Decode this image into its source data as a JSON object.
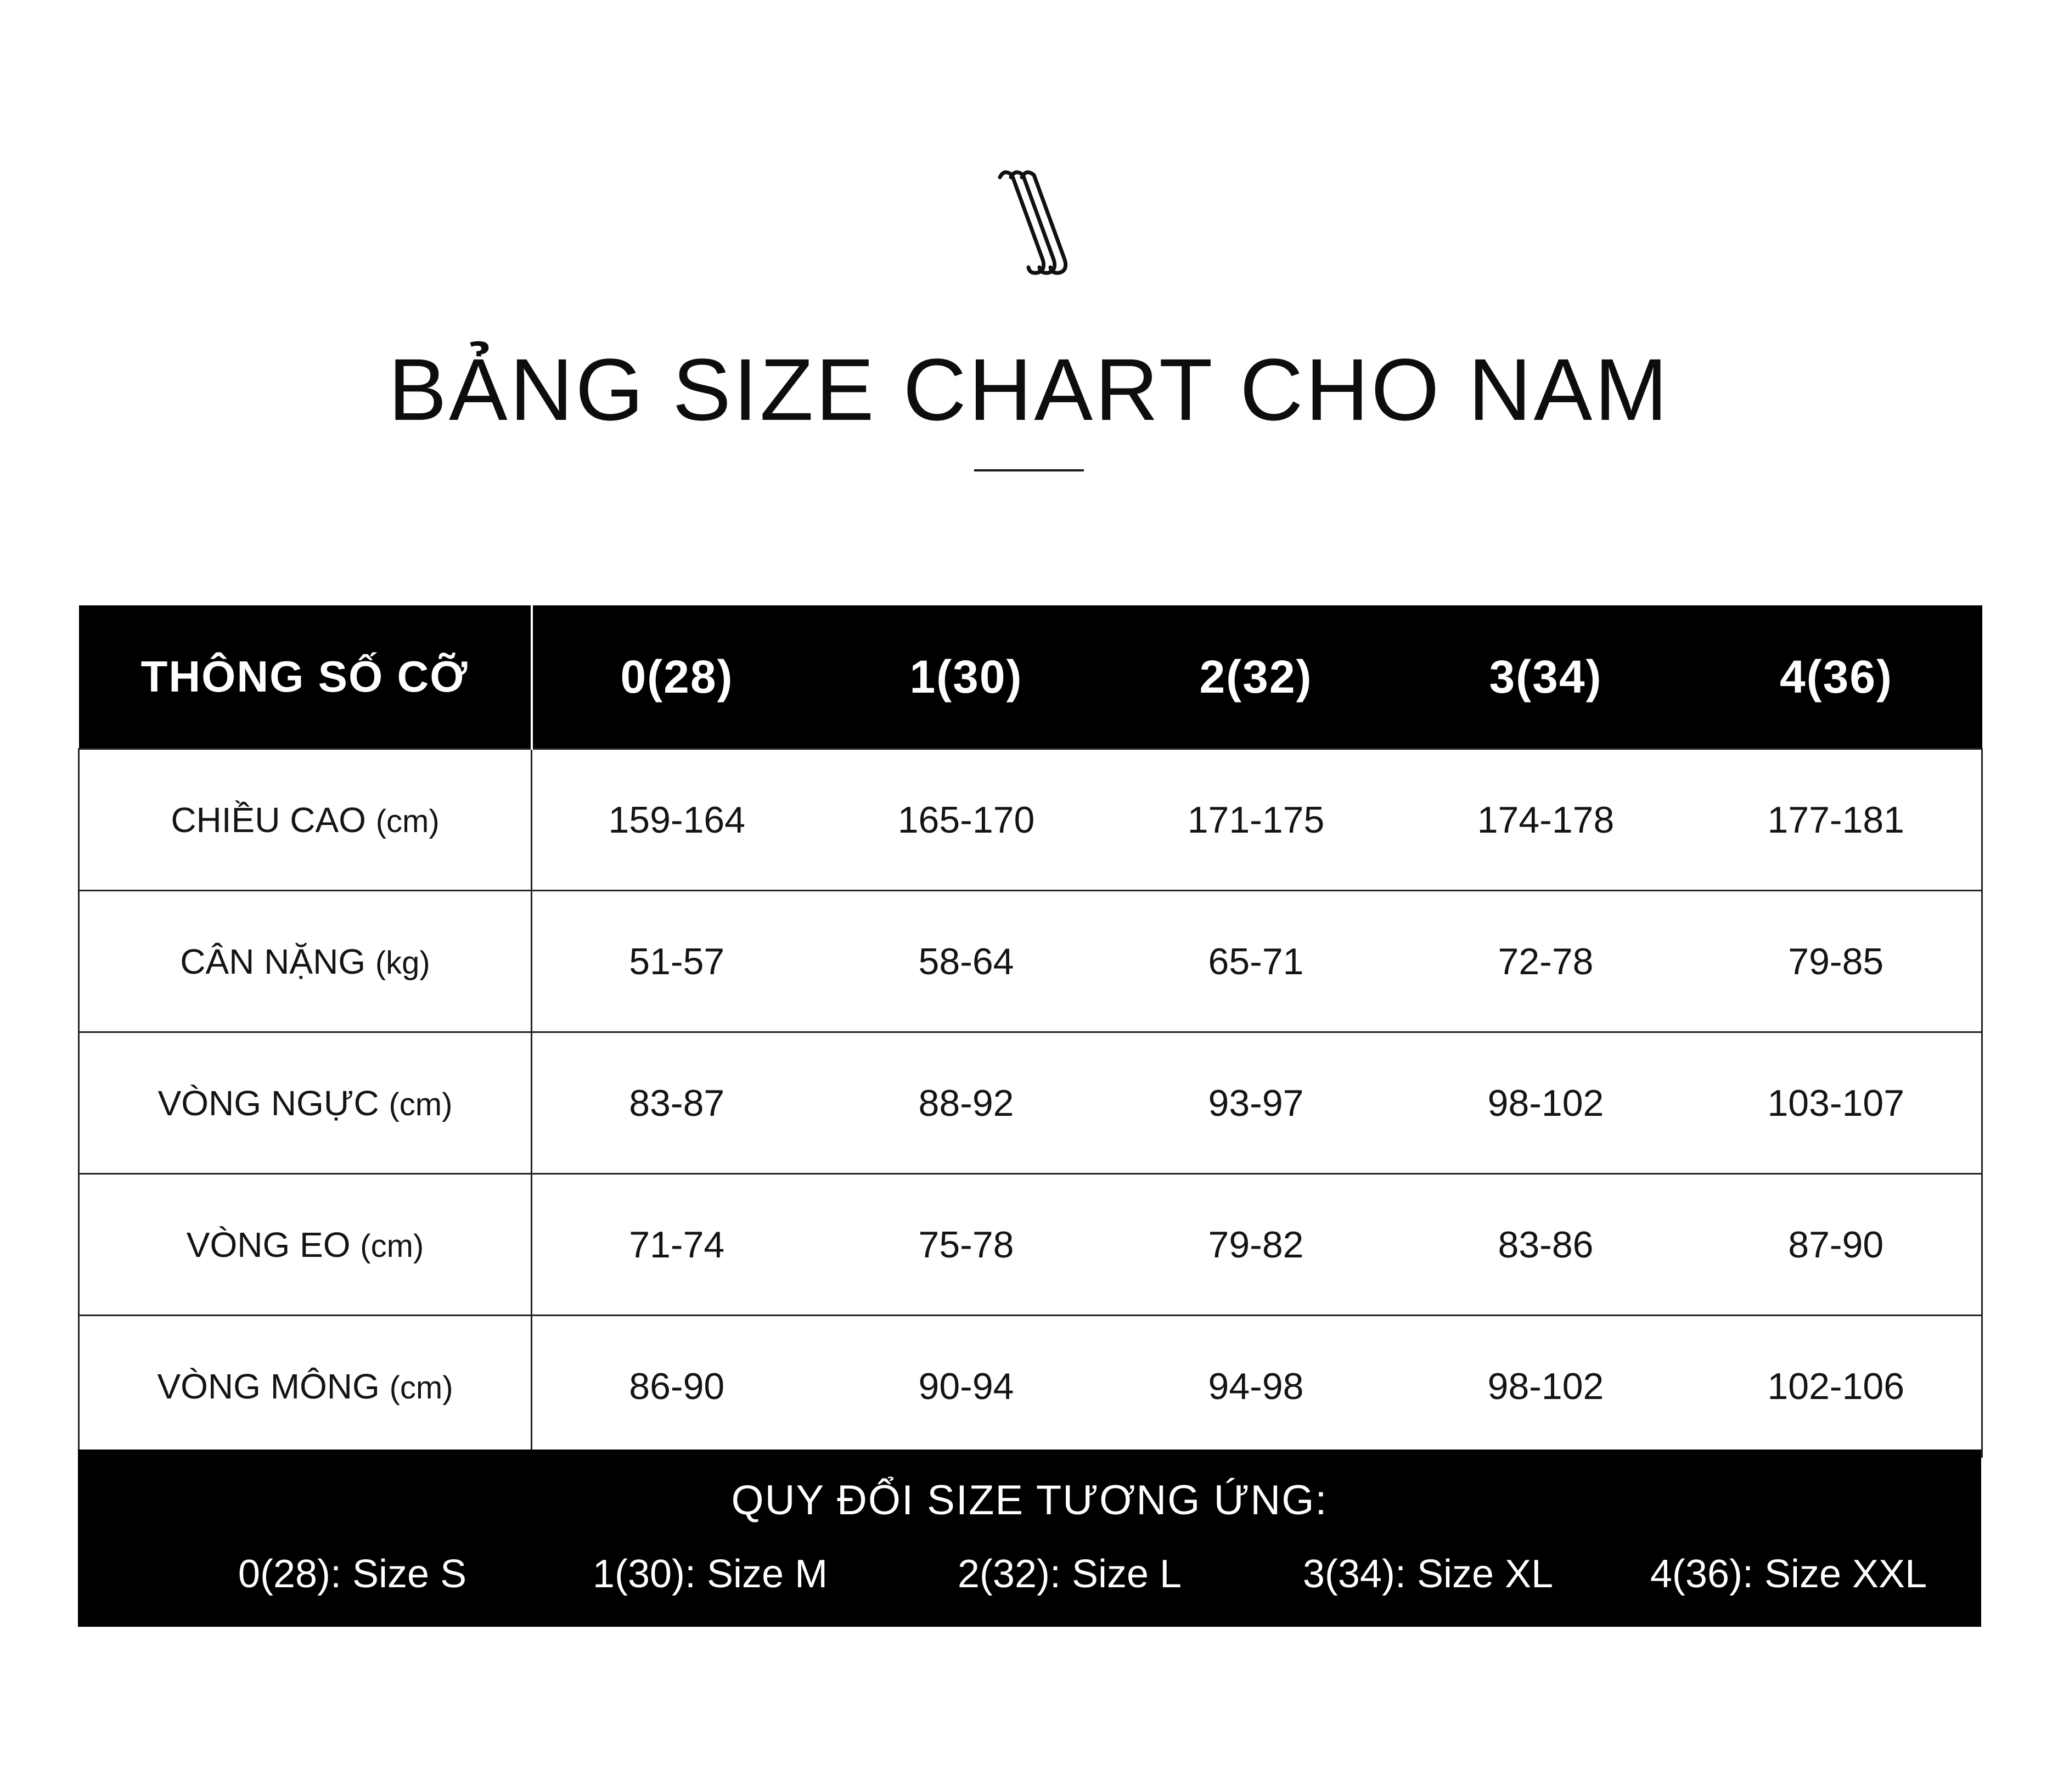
{
  "title": "BẢNG SIZE CHART CHO NAM",
  "logo_icon": "triple-s-hook-logo",
  "table": {
    "header_label": "THÔNG SỐ CỠ",
    "sizes": [
      "0(28)",
      "1(30)",
      "2(32)",
      "3(34)",
      "4(36)"
    ],
    "rows": [
      {
        "label": "CHIỀU CAO",
        "unit": "(cm)",
        "values": [
          "159-164",
          "165-170",
          "171-175",
          "174-178",
          "177-181"
        ]
      },
      {
        "label": "CÂN NẶNG",
        "unit": "(kg)",
        "values": [
          "51-57",
          "58-64",
          "65-71",
          "72-78",
          "79-85"
        ]
      },
      {
        "label": "VÒNG NGỰC",
        "unit": "(cm)",
        "values": [
          "83-87",
          "88-92",
          "93-97",
          "98-102",
          "103-107"
        ]
      },
      {
        "label": "VÒNG EO",
        "unit": "(cm)",
        "values": [
          "71-74",
          "75-78",
          "79-82",
          "83-86",
          "87-90"
        ]
      },
      {
        "label": "VÒNG MÔNG",
        "unit": "(cm)",
        "values": [
          "86-90",
          "90-94",
          "94-98",
          "98-102",
          "102-106"
        ]
      }
    ]
  },
  "conversion": {
    "title": "QUY ĐỔI SIZE TƯƠNG ỨNG:",
    "items": [
      "0(28): Size S",
      "1(30): Size M",
      "2(32): Size L",
      "3(34): Size XL",
      "4(36): Size XXL"
    ]
  },
  "colors": {
    "header_background": "#000000",
    "header_text": "#ffffff",
    "grid_lines": "#222222",
    "body_text": "#141414"
  }
}
